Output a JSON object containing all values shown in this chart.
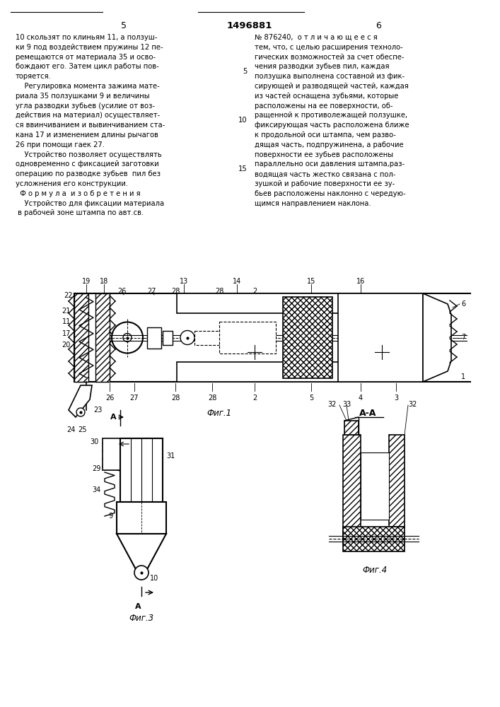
{
  "title": "1496881",
  "page_left": "5",
  "page_right": "6",
  "left_col": [
    "10 скользят по клиньям 11, а ползуш-",
    "ки 9 под воздействием пружины 12 пе-",
    "ремещаются от материала 35 и осво-",
    "бождают его. Затем цикл работы пов-",
    "торяется.",
    "    Регулировка момента зажима мате-",
    "риала 35 ползушками 9 и величины",
    "угла разводки зубьев (усилие от воз-",
    "действия на материал) осуществляет-",
    "ся ввинчиванием и вывинчиванием ста-",
    "кана 17 и изменением длины рычагов",
    "26 при помощи гаек 27.",
    "    Устройство позволяет осуществлять",
    "одновременно с фиксацией заготовки",
    "операцию по разводке зубьев  пил без",
    "усложнения его конструкции.",
    "  Ф о р м у л а  и з о б р е т е н и я",
    "    Устройство для фиксации материала",
    " в рабочей зоне штампа по авт.св."
  ],
  "right_col": [
    "№ 876240,  о т л и ч а ю щ е е с я",
    "тем, что, с целью расширения техноло-",
    "гических возможностей за счет обеспе-",
    "чения разводки зубьев пил, каждая",
    "ползушка выполнена составной из фик-",
    "сирующей и разводящей частей, каждая",
    "из частей оснащена зубьями, которые",
    "расположены на ее поверхности, об-",
    "ращенной к противолежащей ползушке,",
    "фиксирующая часть расположена ближе",
    "к продольной оси штампа, чем разво-",
    "дящая часть, подпружинена, а рабочие",
    "поверхности ее зубьев расположены",
    "параллельно оси давления штампа,раз-",
    "водящая часть жестко связана с пол-",
    "зушкой и рабочие поверхности ее зу-",
    "бьев расположены наклонно с чередую-",
    "щимся направлением наклона."
  ],
  "line_nums": {
    "5": 3,
    "10": 8,
    "15": 13
  },
  "fig1_label": "Фиг.1",
  "fig3_label": "Фиг.3",
  "fig4_label": "Фиг.4",
  "aa_label": "А-А"
}
